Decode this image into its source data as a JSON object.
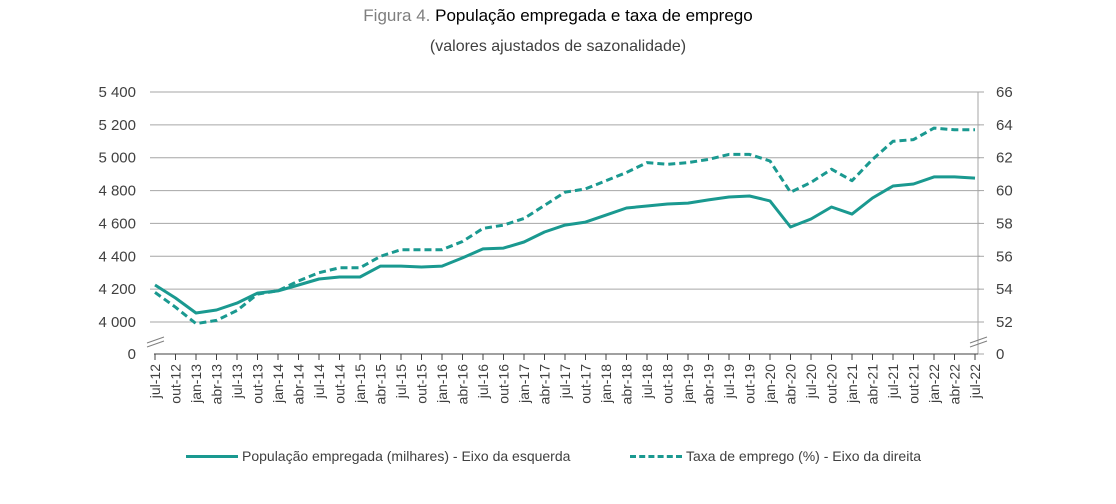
{
  "header": {
    "figure_prefix": "Figura 4.",
    "title": "População empregada e taxa de emprego",
    "subtitle": "(valores ajustados de sazonalidade)"
  },
  "colors": {
    "series": "#1a9990",
    "grid": "#a6a6a6",
    "text": "#404040"
  },
  "chart_data": {
    "type": "line",
    "title": "População empregada e taxa de emprego",
    "subtitle": "(valores ajustados de sazonalidade)",
    "xlabel": "",
    "x": [
      "jul-12",
      "out-12",
      "jan-13",
      "abr-13",
      "jul-13",
      "out-13",
      "jan-14",
      "abr-14",
      "jul-14",
      "out-14",
      "jan-15",
      "abr-15",
      "jul-15",
      "out-15",
      "jan-16",
      "abr-16",
      "jul-16",
      "out-16",
      "jan-17",
      "abr-17",
      "jul-17",
      "out-17",
      "jan-18",
      "abr-18",
      "jul-18",
      "out-18",
      "jan-19",
      "abr-19",
      "jul-19",
      "out-19",
      "jan-20",
      "abr-20",
      "jul-20",
      "out-20",
      "jan-21",
      "abr-21",
      "jul-21",
      "out-21",
      "jan-22",
      "abr-22",
      "jul-22"
    ],
    "y_left": {
      "label": "População empregada (milhares)",
      "ylim": [
        4000,
        5400
      ],
      "ticks": [
        "0",
        "4 000",
        "4 200",
        "4 400",
        "4 600",
        "4 800",
        "5 000",
        "5 200",
        "5 400"
      ],
      "tick_values": [
        0,
        4000,
        4200,
        4400,
        4600,
        4800,
        5000,
        5200,
        5400
      ],
      "axis_break": true
    },
    "y_right": {
      "label": "Taxa de emprego (%)",
      "ylim": [
        52,
        66
      ],
      "ticks": [
        "0",
        "52",
        "54",
        "56",
        "58",
        "60",
        "62",
        "64",
        "66"
      ],
      "tick_values": [
        0,
        52,
        54,
        56,
        58,
        60,
        62,
        64,
        66
      ],
      "axis_break": true
    },
    "grid": true,
    "legend_position": "bottom",
    "series": [
      {
        "name": "População empregada (milhares) - Eixo da esquerda",
        "axis": "left",
        "style": "solid",
        "values": [
          4225,
          4146,
          4055,
          4073,
          4115,
          4176,
          4189,
          4225,
          4262,
          4274,
          4274,
          4340,
          4340,
          4335,
          4340,
          4390,
          4445,
          4450,
          4487,
          4548,
          4590,
          4608,
          4651,
          4694,
          4706,
          4718,
          4724,
          4743,
          4761,
          4767,
          4737,
          4578,
          4627,
          4700,
          4657,
          4755,
          4828,
          4840,
          4883,
          4883,
          4876
        ]
      },
      {
        "name": "Taxa de emprego (%) - Eixo da direita",
        "axis": "right",
        "style": "dashed",
        "values": [
          53.8,
          52.9,
          51.9,
          52.1,
          52.7,
          53.7,
          53.9,
          54.5,
          55.0,
          55.3,
          55.3,
          56.0,
          56.4,
          56.4,
          56.4,
          56.9,
          57.7,
          57.9,
          58.3,
          59.1,
          59.9,
          60.1,
          60.6,
          61.1,
          61.7,
          61.6,
          61.7,
          61.9,
          62.2,
          62.2,
          61.8,
          59.9,
          60.5,
          61.3,
          60.6,
          61.9,
          63.0,
          63.1,
          63.8,
          63.7,
          63.7
        ]
      }
    ]
  },
  "legend": {
    "items": [
      {
        "label": "População empregada (milhares) - Eixo da esquerda",
        "style": "solid"
      },
      {
        "label": "Taxa de emprego (%) - Eixo da direita",
        "style": "dashed"
      }
    ]
  }
}
